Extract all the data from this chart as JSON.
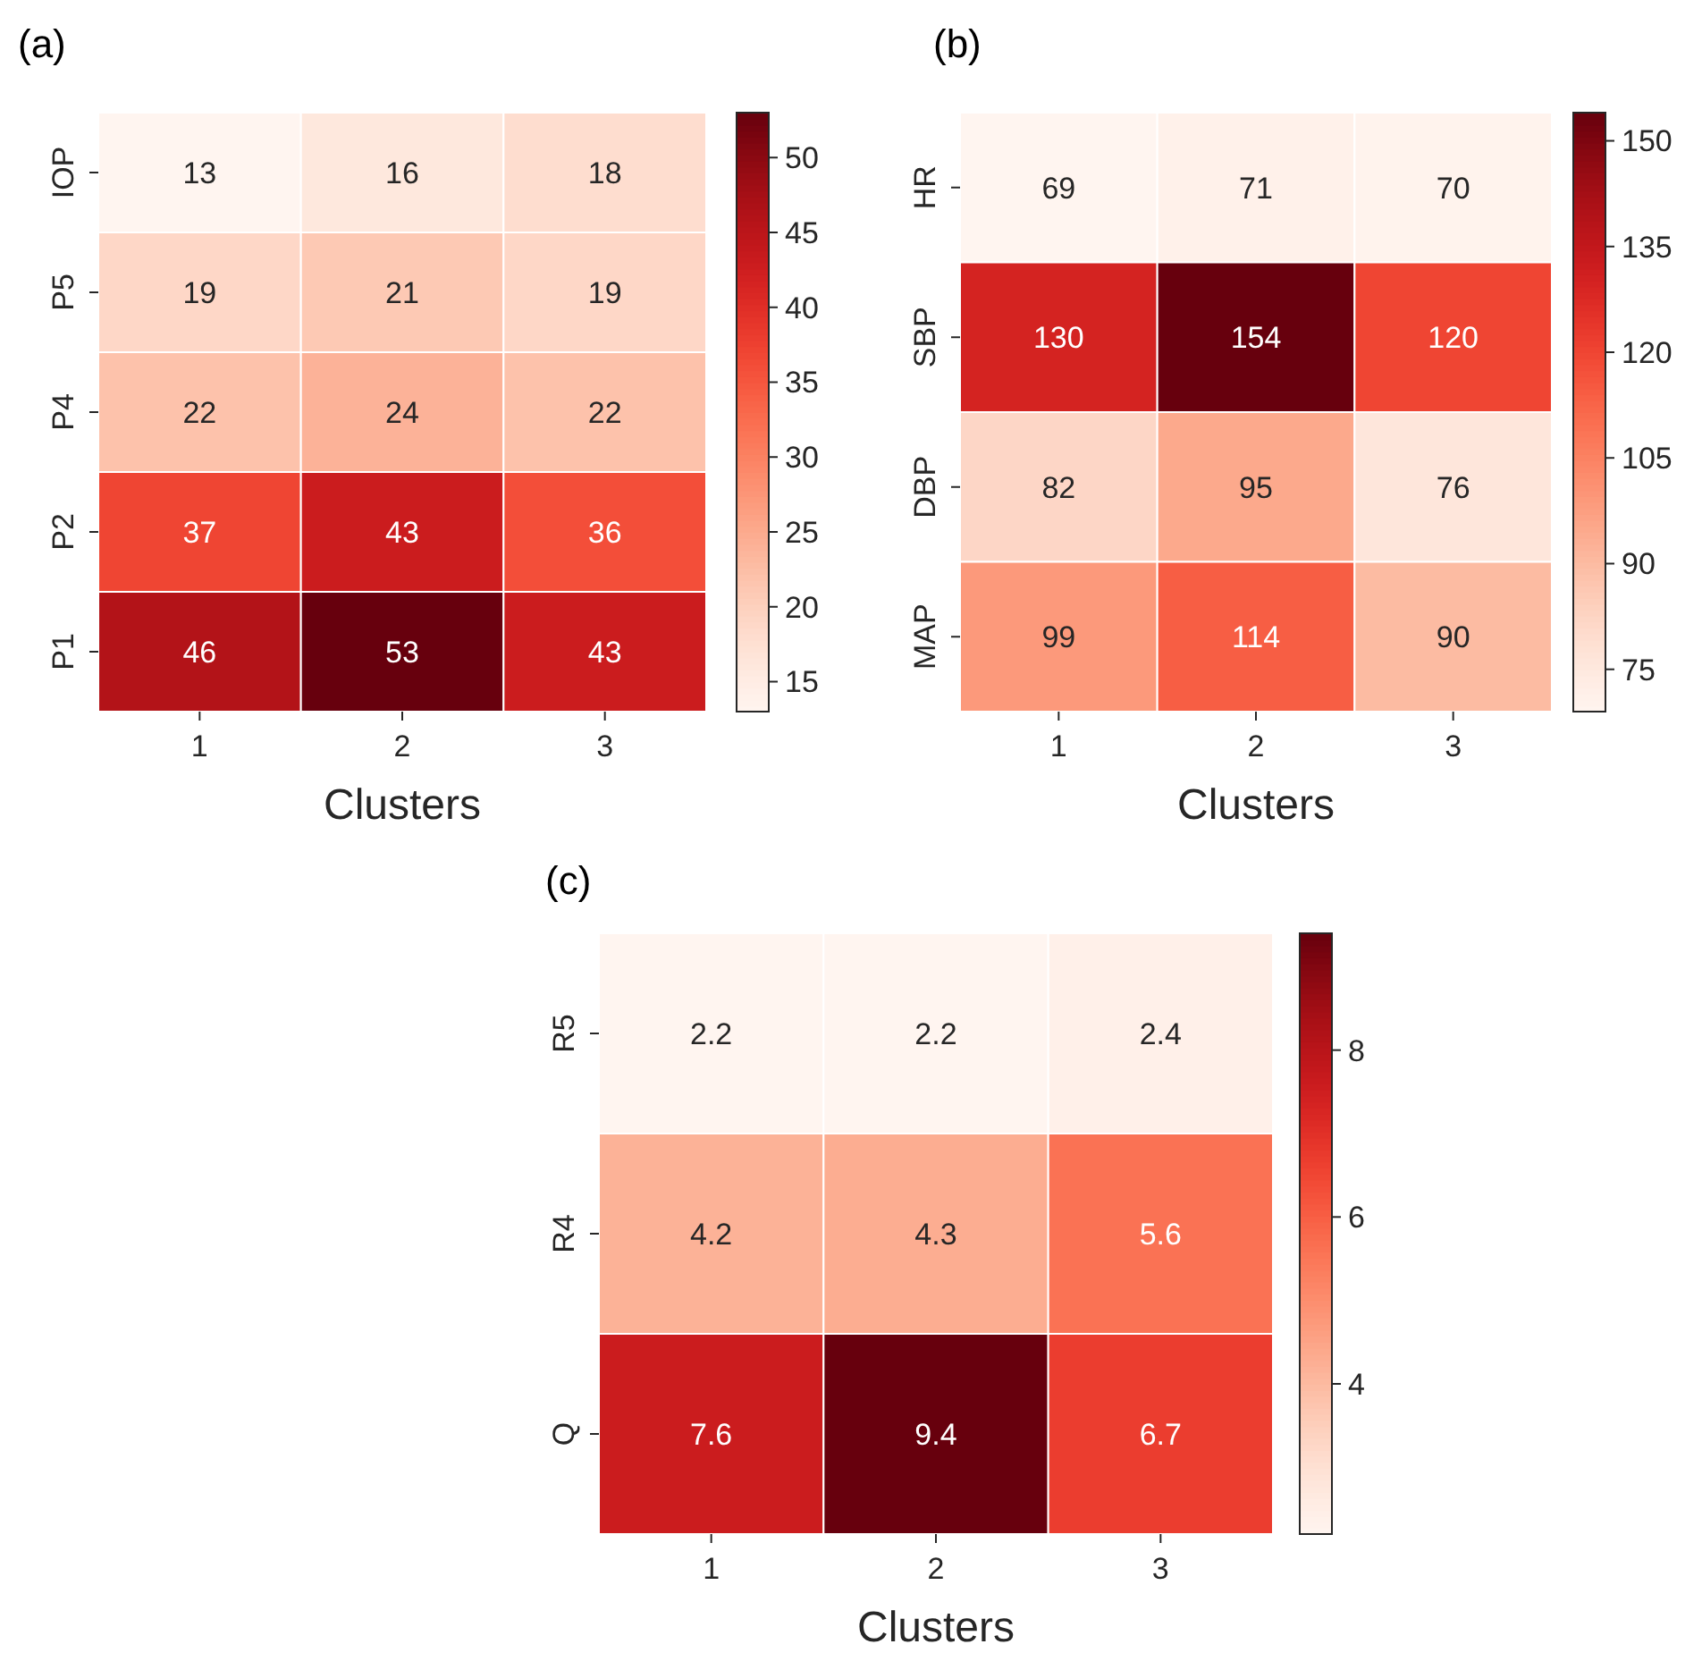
{
  "chart_data": [
    {
      "type": "heatmap",
      "title": "(a)",
      "xlabel": "Clusters",
      "categories": [
        "1",
        "2",
        "3"
      ],
      "y_categories": [
        "IOP",
        "P5",
        "P4",
        "P2",
        "P1"
      ],
      "cells": [
        [
          13,
          16,
          18
        ],
        [
          19,
          21,
          19
        ],
        [
          22,
          24,
          22
        ],
        [
          37,
          43,
          36
        ],
        [
          46,
          53,
          43
        ]
      ],
      "clim": [
        13,
        53
      ],
      "cticks": [
        15,
        20,
        25,
        30,
        35,
        40,
        45,
        50
      ],
      "data_labels": true
    },
    {
      "type": "heatmap",
      "title": "(b)",
      "xlabel": "Clusters",
      "categories": [
        "1",
        "2",
        "3"
      ],
      "y_categories": [
        "HR",
        "SBP",
        "DBP",
        "MAP"
      ],
      "cells": [
        [
          69,
          71,
          70
        ],
        [
          130,
          154,
          120
        ],
        [
          82,
          95,
          76
        ],
        [
          99,
          114,
          90
        ]
      ],
      "clim": [
        69,
        154
      ],
      "cticks": [
        75,
        90,
        105,
        120,
        135,
        150
      ],
      "data_labels": true
    },
    {
      "type": "heatmap",
      "title": "(c)",
      "xlabel": "Clusters",
      "categories": [
        "1",
        "2",
        "3"
      ],
      "y_categories": [
        "R5",
        "R4",
        "Q"
      ],
      "cells": [
        [
          2.2,
          2.2,
          2.4
        ],
        [
          4.2,
          4.3,
          5.6
        ],
        [
          7.6,
          9.4,
          6.7
        ]
      ],
      "clim": [
        2.2,
        9.4
      ],
      "cticks": [
        4,
        6,
        8
      ],
      "data_labels": true
    }
  ]
}
